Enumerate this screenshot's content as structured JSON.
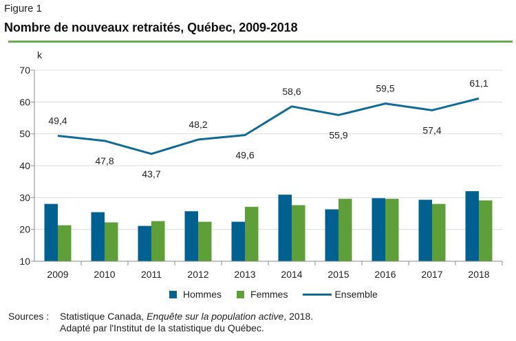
{
  "figure_label": "Figure 1",
  "title": "Nombre de nouveaux retraités, Québec, 2009-2018",
  "colors": {
    "hommes": "#00608f",
    "femmes": "#5e9f3a",
    "ensemble": "#0f6a96",
    "rule": "#6aab4a",
    "grid": "#dcdcdc",
    "axis": "#888888"
  },
  "legend": [
    {
      "label": "Hommes",
      "type": "bar"
    },
    {
      "label": "Femmes",
      "type": "bar"
    },
    {
      "label": "Ensemble",
      "type": "line"
    }
  ],
  "sources": {
    "label": "Sources :",
    "line1_prefix": "Statistique Canada, ",
    "line1_italic": "Enquête sur la population active",
    "line1_suffix": ", 2018.",
    "line2": "Adapté par l'Institut de la statistique du Québec."
  },
  "chart_data": {
    "type": "bar",
    "title": "Nombre de nouveaux retraités, Québec, 2009-2018",
    "ylabel": "k",
    "xlabel": "",
    "ylim": [
      10,
      70
    ],
    "yticks": [
      10,
      20,
      30,
      40,
      50,
      60,
      70
    ],
    "grid": true,
    "legend_position": "bottom",
    "categories": [
      "2009",
      "2010",
      "2011",
      "2012",
      "2013",
      "2014",
      "2015",
      "2016",
      "2017",
      "2018"
    ],
    "series": [
      {
        "name": "Hommes",
        "type": "bar",
        "values": [
          28.0,
          25.4,
          21.1,
          25.7,
          22.4,
          30.9,
          26.3,
          29.8,
          29.3,
          32.0
        ]
      },
      {
        "name": "Femmes",
        "type": "bar",
        "values": [
          21.3,
          22.2,
          22.6,
          22.4,
          27.1,
          27.6,
          29.6,
          29.6,
          28.0,
          29.1
        ]
      },
      {
        "name": "Ensemble",
        "type": "line",
        "values": [
          49.4,
          47.8,
          43.7,
          48.2,
          49.6,
          58.6,
          55.9,
          59.5,
          57.4,
          61.1
        ],
        "labels": [
          "49,4",
          "47,8",
          "43,7",
          "48,2",
          "49,6",
          "58,6",
          "55,9",
          "59,5",
          "57,4",
          "61,1"
        ],
        "label_positions": [
          "above",
          "below",
          "below",
          "above",
          "below",
          "above",
          "below",
          "above",
          "below",
          "above"
        ]
      }
    ]
  }
}
